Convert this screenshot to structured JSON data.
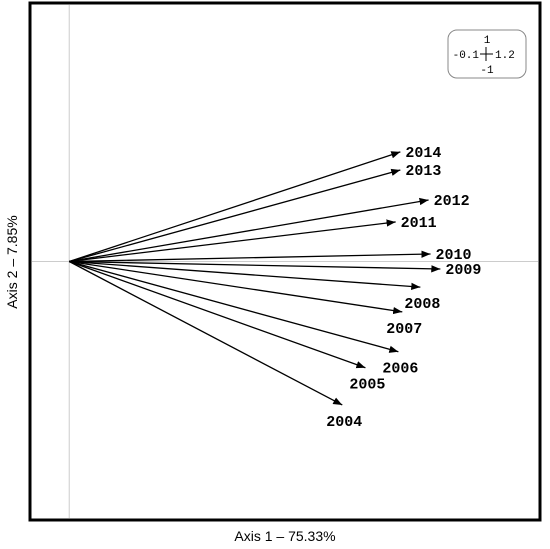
{
  "chart_data": {
    "type": "vector",
    "x_label": "Axis 1 – 75.33%",
    "y_label": "Axis 2 – 7.85%",
    "categories": [
      "2014",
      "2013",
      "2012",
      "2011",
      "2010",
      "2009",
      "2008",
      "2007",
      "2006",
      "2005",
      "2004"
    ],
    "x": [
      0.844,
      0.844,
      0.916,
      0.832,
      0.921,
      0.946,
      0.895,
      0.849,
      0.839,
      0.755,
      0.696
    ],
    "values": [
      0.424,
      0.354,
      0.238,
      0.153,
      0.029,
      -0.029,
      -0.099,
      -0.195,
      -0.349,
      -0.411,
      -0.555
    ],
    "color": "#000000",
    "xlim": [
      -0.1,
      1.2
    ],
    "ylim": [
      -1,
      1
    ]
  }
}
